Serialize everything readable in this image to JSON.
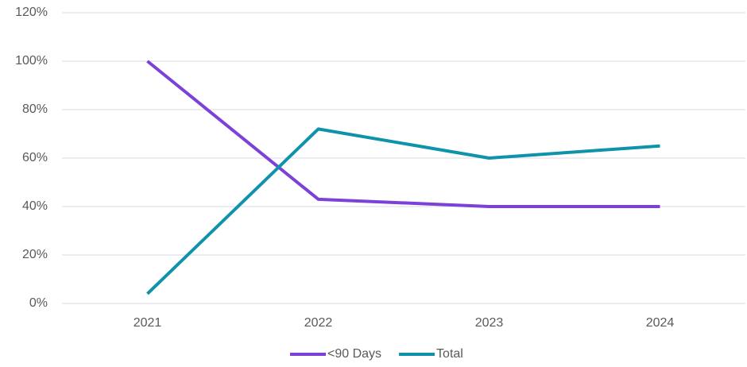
{
  "chart_data": {
    "type": "line",
    "categories": [
      "2021",
      "2022",
      "2023",
      "2024"
    ],
    "series": [
      {
        "name": "<90 Days",
        "color": "#7b41d8",
        "values": [
          100,
          43,
          40,
          40
        ]
      },
      {
        "name": "Total",
        "color": "#0f93aa",
        "values": [
          4,
          72,
          60,
          65
        ]
      }
    ],
    "ylim": [
      0,
      120
    ],
    "yticks": [
      {
        "value": 0,
        "label": "0%"
      },
      {
        "value": 20,
        "label": "20%"
      },
      {
        "value": 40,
        "label": "40%"
      },
      {
        "value": 60,
        "label": "60%"
      },
      {
        "value": 80,
        "label": "80%"
      },
      {
        "value": 100,
        "label": "100%"
      },
      {
        "value": 120,
        "label": "120%"
      }
    ],
    "grid": true,
    "legend": "bottom"
  }
}
